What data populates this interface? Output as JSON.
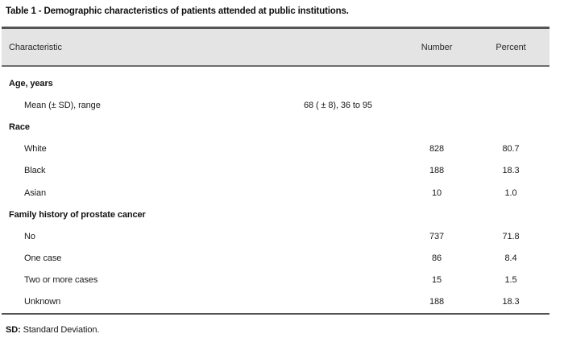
{
  "title": "Table 1 - Demographic characteristics of patients attended at public institutions.",
  "table": {
    "columns": {
      "characteristic": "Characteristic",
      "number": "Number",
      "percent": "Percent"
    },
    "rows": [
      {
        "type": "section",
        "label": "Age, years",
        "value": "",
        "number": "",
        "percent": ""
      },
      {
        "type": "sub",
        "label": "Mean (± SD), range",
        "value": "68 ( ± 8), 36 to 95",
        "number": "",
        "percent": ""
      },
      {
        "type": "section",
        "label": "Race",
        "value": "",
        "number": "",
        "percent": ""
      },
      {
        "type": "sub",
        "label": "White",
        "value": "",
        "number": "828",
        "percent": "80.7"
      },
      {
        "type": "sub",
        "label": "Black",
        "value": "",
        "number": "188",
        "percent": "18.3"
      },
      {
        "type": "sub",
        "label": "Asian",
        "value": "",
        "number": "10",
        "percent": "1.0"
      },
      {
        "type": "section",
        "label": "Family history of prostate cancer",
        "value": "",
        "number": "",
        "percent": ""
      },
      {
        "type": "sub",
        "label": "No",
        "value": "",
        "number": "737",
        "percent": "71.8"
      },
      {
        "type": "sub",
        "label": "One case",
        "value": "",
        "number": "86",
        "percent": "8.4"
      },
      {
        "type": "sub",
        "label": "Two or more cases",
        "value": "",
        "number": "15",
        "percent": "1.5"
      },
      {
        "type": "sub",
        "label": "Unknown",
        "value": "",
        "number": "188",
        "percent": "18.3"
      }
    ]
  },
  "footnote": {
    "abbr": "SD:",
    "text": " Standard Deviation."
  },
  "colors": {
    "header_bg": "#e4e4e4",
    "rule_dark": "#545454",
    "rule_mid": "#6e6e6e",
    "text": "#1a1a1a"
  }
}
